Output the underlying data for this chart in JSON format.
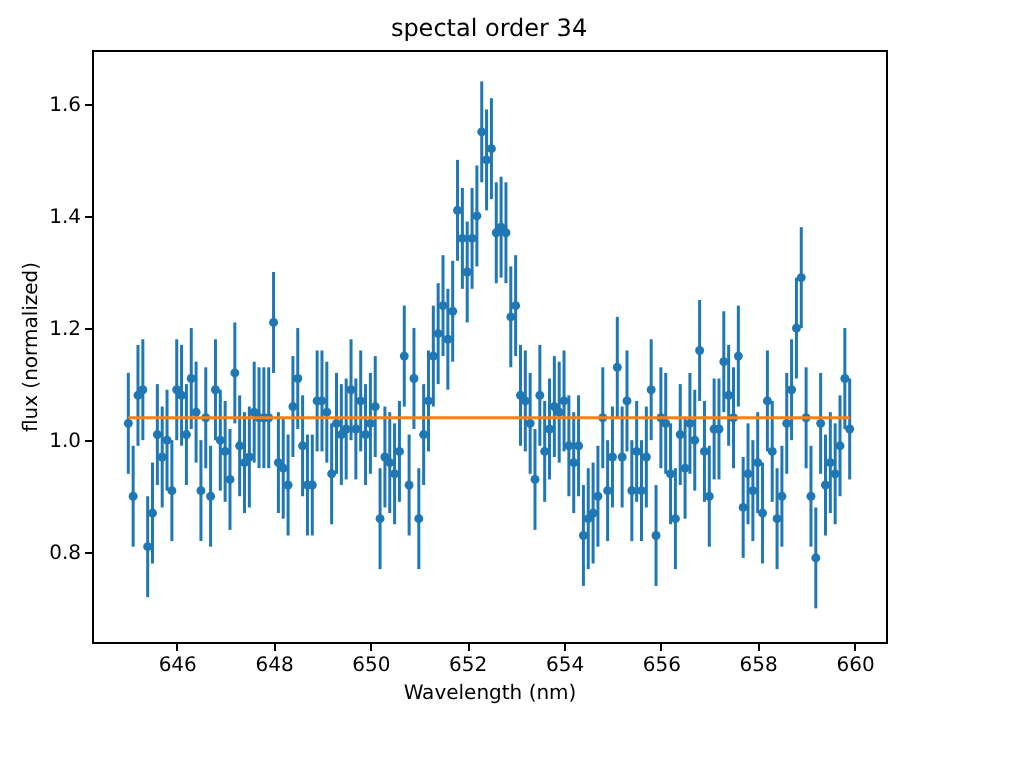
{
  "chart_data": {
    "type": "scatter",
    "title": "spectal order 34",
    "xlabel": "Wavelength (nm)",
    "ylabel": "flux (normalized)",
    "xlim": [
      644.25,
      660.65
    ],
    "ylim": [
      0.64,
      1.696
    ],
    "xticks": [
      646,
      648,
      650,
      652,
      654,
      656,
      658,
      660
    ],
    "yticks": [
      0.8,
      {
        "value": 1.0,
        "label": "1.0"
      },
      1.2,
      1.4,
      1.6
    ],
    "marker": "circle",
    "grid": false,
    "series": [
      {
        "color": "#1f77b4",
        "x": [
          645.0,
          645.1,
          645.2,
          645.3,
          645.4,
          645.5,
          645.6,
          645.7,
          645.8,
          645.9,
          646.0,
          646.1,
          646.2,
          646.3,
          646.4,
          646.5,
          646.6,
          646.7,
          646.8,
          646.9,
          647.0,
          647.1,
          647.2,
          647.3,
          647.4,
          647.5,
          647.6,
          647.7,
          647.8,
          647.9,
          648.0,
          648.1,
          648.2,
          648.3,
          648.4,
          648.5,
          648.6,
          648.7,
          648.8,
          648.9,
          649.0,
          649.1,
          649.2,
          649.3,
          649.4,
          649.5,
          649.6,
          649.7,
          649.8,
          649.9,
          650.0,
          650.1,
          650.2,
          650.3,
          650.4,
          650.5,
          650.6,
          650.7,
          650.8,
          650.9,
          651.0,
          651.1,
          651.2,
          651.3,
          651.4,
          651.5,
          651.6,
          651.7,
          651.8,
          651.9,
          652.0,
          652.1,
          652.2,
          652.3,
          652.4,
          652.5,
          652.6,
          652.7,
          652.8,
          652.9,
          653.0,
          653.1,
          653.2,
          653.3,
          653.4,
          653.5,
          653.6,
          653.7,
          653.8,
          653.9,
          654.0,
          654.1,
          654.2,
          654.3,
          654.4,
          654.5,
          654.6,
          654.7,
          654.8,
          654.9,
          655.0,
          655.1,
          655.2,
          655.3,
          655.4,
          655.5,
          655.6,
          655.7,
          655.8,
          655.9,
          656.0,
          656.1,
          656.2,
          656.3,
          656.4,
          656.5,
          656.6,
          656.7,
          656.8,
          656.9,
          657.0,
          657.1,
          657.2,
          657.3,
          657.4,
          657.5,
          657.6,
          657.7,
          657.8,
          657.9,
          658.0,
          658.1,
          658.2,
          658.3,
          658.4,
          658.5,
          658.6,
          658.7,
          658.8,
          658.9,
          659.0,
          659.1,
          659.2,
          659.3,
          659.4,
          659.5,
          659.6,
          659.7,
          659.8,
          659.9
        ],
        "values": [
          1.03,
          0.9,
          1.08,
          1.09,
          0.81,
          0.87,
          1.01,
          0.97,
          1.0,
          0.91,
          1.09,
          1.08,
          1.01,
          1.11,
          1.05,
          0.91,
          1.04,
          0.9,
          1.09,
          1.0,
          0.98,
          0.93,
          1.12,
          0.99,
          0.96,
          0.97,
          1.05,
          1.04,
          1.04,
          1.04,
          1.21,
          0.96,
          0.95,
          0.92,
          1.06,
          1.11,
          0.99,
          0.92,
          0.92,
          1.07,
          1.07,
          1.05,
          0.94,
          1.03,
          1.01,
          1.02,
          1.09,
          1.02,
          1.07,
          1.01,
          1.03,
          1.06,
          0.86,
          0.97,
          0.96,
          0.94,
          0.98,
          1.15,
          0.92,
          1.11,
          0.86,
          1.01,
          1.07,
          1.15,
          1.19,
          1.24,
          1.18,
          1.23,
          1.41,
          1.36,
          1.3,
          1.36,
          1.4,
          1.55,
          1.5,
          1.52,
          1.37,
          1.38,
          1.37,
          1.22,
          1.24,
          1.08,
          1.07,
          1.03,
          0.93,
          1.08,
          0.98,
          1.02,
          1.06,
          1.05,
          1.07,
          0.99,
          0.96,
          0.99,
          0.83,
          0.86,
          0.87,
          0.9,
          1.04,
          0.91,
          0.97,
          1.13,
          0.97,
          1.07,
          0.91,
          0.98,
          0.91,
          0.97,
          1.09,
          0.83,
          1.04,
          1.03,
          0.94,
          0.86,
          1.01,
          0.95,
          1.03,
          1.0,
          1.16,
          0.98,
          0.9,
          1.02,
          1.02,
          1.14,
          1.08,
          1.04,
          1.15,
          0.88,
          0.94,
          0.91,
          0.96,
          0.87,
          1.07,
          0.98,
          0.86,
          0.9,
          1.03,
          1.09,
          1.2,
          1.29,
          1.04,
          0.9,
          0.79,
          1.03,
          0.92,
          0.96,
          0.94,
          0.99,
          1.11,
          1.02
        ],
        "errors": [
          0.09,
          0.09,
          0.09,
          0.09,
          0.09,
          0.09,
          0.09,
          0.09,
          0.09,
          0.09,
          0.09,
          0.09,
          0.09,
          0.09,
          0.09,
          0.09,
          0.09,
          0.09,
          0.09,
          0.09,
          0.09,
          0.09,
          0.09,
          0.09,
          0.09,
          0.09,
          0.09,
          0.09,
          0.09,
          0.09,
          0.09,
          0.09,
          0.09,
          0.09,
          0.09,
          0.09,
          0.09,
          0.09,
          0.09,
          0.09,
          0.09,
          0.09,
          0.09,
          0.09,
          0.09,
          0.09,
          0.09,
          0.09,
          0.09,
          0.09,
          0.09,
          0.09,
          0.09,
          0.09,
          0.09,
          0.09,
          0.09,
          0.09,
          0.09,
          0.09,
          0.09,
          0.09,
          0.09,
          0.09,
          0.09,
          0.09,
          0.09,
          0.09,
          0.09,
          0.09,
          0.09,
          0.09,
          0.09,
          0.09,
          0.09,
          0.09,
          0.09,
          0.09,
          0.09,
          0.09,
          0.09,
          0.09,
          0.09,
          0.09,
          0.09,
          0.09,
          0.09,
          0.09,
          0.09,
          0.09,
          0.09,
          0.09,
          0.09,
          0.09,
          0.09,
          0.09,
          0.09,
          0.09,
          0.09,
          0.09,
          0.09,
          0.09,
          0.09,
          0.09,
          0.09,
          0.09,
          0.09,
          0.09,
          0.09,
          0.09,
          0.09,
          0.09,
          0.09,
          0.09,
          0.09,
          0.09,
          0.09,
          0.09,
          0.09,
          0.09,
          0.09,
          0.09,
          0.09,
          0.09,
          0.09,
          0.09,
          0.09,
          0.09,
          0.09,
          0.09,
          0.09,
          0.09,
          0.09,
          0.09,
          0.09,
          0.09,
          0.09,
          0.09,
          0.09,
          0.09,
          0.09,
          0.09,
          0.09,
          0.09,
          0.09,
          0.09,
          0.09,
          0.09,
          0.09,
          0.09
        ]
      },
      {
        "type": "line",
        "marker": "none",
        "color": "#ff7f0e",
        "x": [
          645.0,
          659.9
        ],
        "values": [
          1.04,
          1.04
        ]
      }
    ]
  }
}
